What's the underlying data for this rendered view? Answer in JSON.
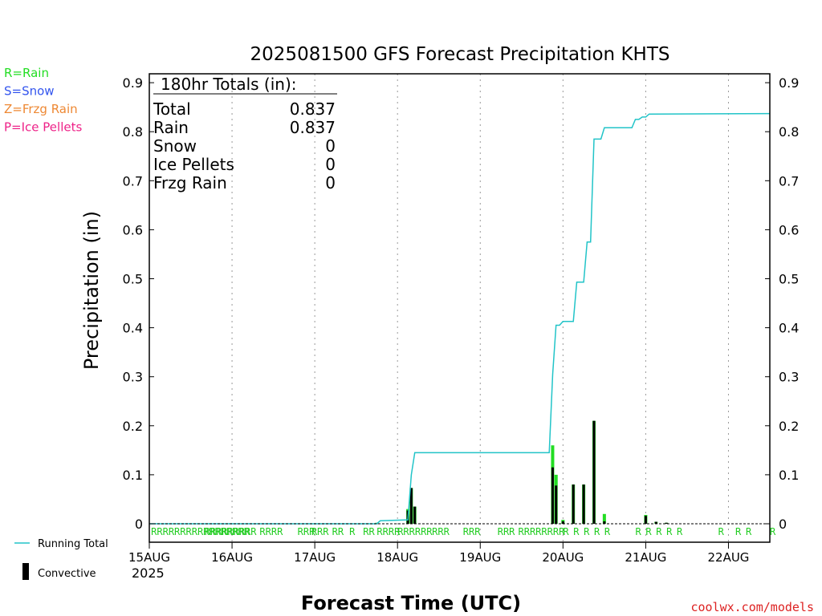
{
  "chart_data": {
    "type": "bar",
    "title": "2025081500 GFS Forecast Precipitation KHTS",
    "xlabel": "Forecast Time (UTC)",
    "ylabel": "Precipitation (in)",
    "ylim": [
      0,
      0.92
    ],
    "y_ticks": [
      0,
      0.1,
      0.2,
      0.3,
      0.4,
      0.5,
      0.6,
      0.7,
      0.8,
      0.9
    ],
    "y_tick_labels": [
      "0",
      "0.1",
      "0.2",
      "0.3",
      "0.4",
      "0.5",
      "0.6",
      "0.7",
      "0.8",
      "0.9"
    ],
    "xlim_hours": [
      0,
      180
    ],
    "x_tick_hours": [
      0,
      24,
      48,
      72,
      96,
      120,
      144,
      168
    ],
    "x_tick_labels": [
      "15AUG",
      "16AUG",
      "17AUG",
      "18AUG",
      "19AUG",
      "20AUG",
      "21AUG",
      "22AUG"
    ],
    "x_year_label": "2025",
    "grid": "vertical dotted",
    "totals_box": {
      "heading": "180hr Totals (in):",
      "rows": [
        {
          "label": "Total",
          "value": "0.837"
        },
        {
          "label": "Rain",
          "value": "0.837"
        },
        {
          "label": "Snow",
          "value": "0"
        },
        {
          "label": "Ice Pellets",
          "value": "0"
        },
        {
          "label": "Frzg Rain",
          "value": "0"
        }
      ]
    },
    "precip_type_legend": [
      {
        "label": "R=Rain",
        "color": "#22dd22"
      },
      {
        "label": "S=Snow",
        "color": "#3355ee"
      },
      {
        "label": "Z=Frzg Rain",
        "color": "#ee8833"
      },
      {
        "label": "P=Ice Pellets",
        "color": "#ee2288"
      }
    ],
    "series_legend": [
      {
        "label": "Running Total",
        "color": "#22c4c8"
      },
      {
        "label": "Convective",
        "color": "#000000"
      }
    ],
    "precip_bars": [
      {
        "hour": 66,
        "total": 0.002,
        "convective": 0.001
      },
      {
        "hour": 75,
        "total": 0.03,
        "convective": 0.027
      },
      {
        "hour": 76,
        "total": 0.073,
        "convective": 0.073
      },
      {
        "hour": 77,
        "total": 0.035,
        "convective": 0.035
      },
      {
        "hour": 117,
        "total": 0.16,
        "convective": 0.115
      },
      {
        "hour": 118,
        "total": 0.1,
        "convective": 0.078
      },
      {
        "hour": 120,
        "total": 0.008,
        "convective": 0.005
      },
      {
        "hour": 123,
        "total": 0.08,
        "convective": 0.08
      },
      {
        "hour": 126,
        "total": 0.08,
        "convective": 0.08
      },
      {
        "hour": 129,
        "total": 0.21,
        "convective": 0.21
      },
      {
        "hour": 132,
        "total": 0.02,
        "convective": 0.005
      },
      {
        "hour": 144,
        "total": 0.018,
        "convective": 0.016
      },
      {
        "hour": 147,
        "total": 0.004,
        "convective": 0.004
      },
      {
        "hour": 150,
        "total": 0.002,
        "convective": 0.002
      }
    ],
    "running_total": [
      {
        "hour": 0,
        "value": 0
      },
      {
        "hour": 66,
        "value": 0
      },
      {
        "hour": 67,
        "value": 0.006
      },
      {
        "hour": 75,
        "value": 0.008
      },
      {
        "hour": 76,
        "value": 0.1
      },
      {
        "hour": 77,
        "value": 0.145
      },
      {
        "hour": 116,
        "value": 0.145
      },
      {
        "hour": 117,
        "value": 0.305
      },
      {
        "hour": 118,
        "value": 0.405
      },
      {
        "hour": 119,
        "value": 0.405
      },
      {
        "hour": 120,
        "value": 0.413
      },
      {
        "hour": 123,
        "value": 0.413
      },
      {
        "hour": 124,
        "value": 0.493
      },
      {
        "hour": 126,
        "value": 0.493
      },
      {
        "hour": 127,
        "value": 0.575
      },
      {
        "hour": 128,
        "value": 0.575
      },
      {
        "hour": 129,
        "value": 0.785
      },
      {
        "hour": 131,
        "value": 0.785
      },
      {
        "hour": 132,
        "value": 0.808
      },
      {
        "hour": 140,
        "value": 0.808
      },
      {
        "hour": 141,
        "value": 0.825
      },
      {
        "hour": 142,
        "value": 0.825
      },
      {
        "hour": 143,
        "value": 0.83
      },
      {
        "hour": 144,
        "value": 0.83
      },
      {
        "hour": 145,
        "value": 0.836
      },
      {
        "hour": 180,
        "value": 0.837
      }
    ],
    "precip_type_marks": [
      {
        "hour": 0.5,
        "text": "RRRRRRRRRRRRRRRRR"
      },
      {
        "hour": 16,
        "text": "RRR"
      },
      {
        "hour": 21,
        "text": "RRRRRR"
      },
      {
        "hour": 32,
        "text": "RRRR"
      },
      {
        "hour": 43,
        "text": "RRR"
      },
      {
        "hour": 47,
        "text": "RRR"
      },
      {
        "hour": 53,
        "text": "RR"
      },
      {
        "hour": 58,
        "text": "R"
      },
      {
        "hour": 62,
        "text": "RR"
      },
      {
        "hour": 66,
        "text": "RRRR"
      },
      {
        "hour": 72,
        "text": "RRRRRR"
      },
      {
        "hour": 82,
        "text": "RRR"
      },
      {
        "hour": 91,
        "text": "RRR"
      },
      {
        "hour": 101,
        "text": "RRR"
      },
      {
        "hour": 107,
        "text": "RRRRRRRR"
      },
      {
        "hour": 120,
        "text": "R"
      },
      {
        "hour": 123,
        "text": "R"
      },
      {
        "hour": 126,
        "text": "R"
      },
      {
        "hour": 129,
        "text": "R"
      },
      {
        "hour": 132,
        "text": "R"
      },
      {
        "hour": 141,
        "text": "R"
      },
      {
        "hour": 144,
        "text": "R"
      },
      {
        "hour": 147,
        "text": "R"
      },
      {
        "hour": 150,
        "text": "R"
      },
      {
        "hour": 153,
        "text": "R"
      },
      {
        "hour": 165,
        "text": "R"
      },
      {
        "hour": 170,
        "text": "R"
      },
      {
        "hour": 173,
        "text": "R"
      },
      {
        "hour": 180,
        "text": "R"
      }
    ],
    "credit": "coolwx.com/models"
  }
}
